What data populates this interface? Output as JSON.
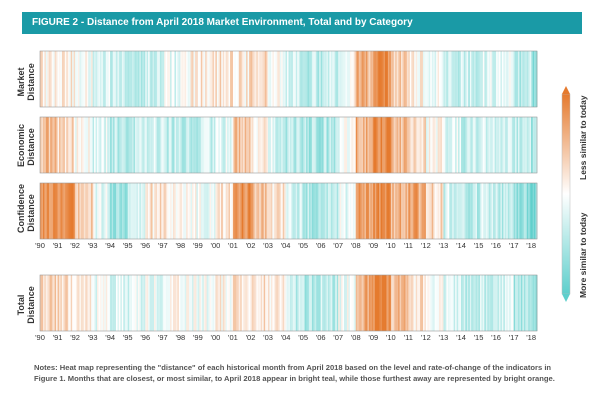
{
  "header": {
    "title": "FIGURE 2 - Distance from April 2018 Market Environment, Total and by Category"
  },
  "legend": {
    "top_label": "Less similar to today",
    "bottom_label": "More similar to today",
    "colors": {
      "high": "#e57a2e",
      "mid": "#ffffff",
      "low": "#5ecfcc"
    }
  },
  "notes": "Notes: Heat map representing the \"distance\" of each historical month from April 2018 based on the level and rate-of-change of the indicators in Figure 1. Months that are closest, or most similar, to April 2018 appear in bright teal, while those furthest away are represented by bright orange.",
  "chart_data": {
    "type": "heatmap",
    "x_start": "1990-01",
    "x_end": "2018-04",
    "x_ticks": [
      "'90",
      "'91",
      "'92",
      "'93",
      "'94",
      "'95",
      "'96",
      "'97",
      "'98",
      "'99",
      "'00",
      "'01",
      "'02",
      "'03",
      "'04",
      "'05",
      "'06",
      "'07",
      "'08",
      "'09",
      "'10",
      "'11",
      "'12",
      "'13",
      "'14",
      "'15",
      "'16",
      "'17",
      "'18"
    ],
    "value_scale": "-1 = most similar (teal), +1 = least similar (orange)",
    "rows": [
      {
        "label": "Market Distance",
        "years": [
          {
            "year": 1990,
            "value": 0.12
          },
          {
            "year": 1991,
            "value": 0.1
          },
          {
            "year": 1992,
            "value": -0.05
          },
          {
            "year": 1993,
            "value": -0.25
          },
          {
            "year": 1994,
            "value": -0.3
          },
          {
            "year": 1995,
            "value": -0.35
          },
          {
            "year": 1996,
            "value": -0.3
          },
          {
            "year": 1997,
            "value": -0.15
          },
          {
            "year": 1998,
            "value": 0.1
          },
          {
            "year": 1999,
            "value": 0.15
          },
          {
            "year": 2000,
            "value": 0.2
          },
          {
            "year": 2001,
            "value": 0.15
          },
          {
            "year": 2002,
            "value": 0.25
          },
          {
            "year": 2003,
            "value": 0.05
          },
          {
            "year": 2004,
            "value": -0.3
          },
          {
            "year": 2005,
            "value": -0.4
          },
          {
            "year": 2006,
            "value": -0.35
          },
          {
            "year": 2007,
            "value": 0.0
          },
          {
            "year": 2008,
            "value": 0.55
          },
          {
            "year": 2009,
            "value": 0.85
          },
          {
            "year": 2010,
            "value": 0.35
          },
          {
            "year": 2011,
            "value": 0.1
          },
          {
            "year": 2012,
            "value": -0.1
          },
          {
            "year": 2013,
            "value": -0.3
          },
          {
            "year": 2014,
            "value": -0.35
          },
          {
            "year": 2015,
            "value": -0.2
          },
          {
            "year": 2016,
            "value": -0.1
          },
          {
            "year": 2017,
            "value": -0.4
          },
          {
            "year": 2018,
            "value": -0.7
          }
        ]
      },
      {
        "label": "Economic Distance",
        "years": [
          {
            "year": 1990,
            "value": 0.5
          },
          {
            "year": 1991,
            "value": 0.3
          },
          {
            "year": 1992,
            "value": 0.05
          },
          {
            "year": 1993,
            "value": -0.2
          },
          {
            "year": 1994,
            "value": -0.45
          },
          {
            "year": 1995,
            "value": -0.35
          },
          {
            "year": 1996,
            "value": -0.3
          },
          {
            "year": 1997,
            "value": -0.4
          },
          {
            "year": 1998,
            "value": -0.35
          },
          {
            "year": 1999,
            "value": -0.3
          },
          {
            "year": 2000,
            "value": -0.2
          },
          {
            "year": 2001,
            "value": 0.45
          },
          {
            "year": 2002,
            "value": 0.1
          },
          {
            "year": 2003,
            "value": -0.2
          },
          {
            "year": 2004,
            "value": -0.45
          },
          {
            "year": 2005,
            "value": -0.5
          },
          {
            "year": 2006,
            "value": -0.45
          },
          {
            "year": 2007,
            "value": -0.1
          },
          {
            "year": 2008,
            "value": 0.6
          },
          {
            "year": 2009,
            "value": 0.9
          },
          {
            "year": 2010,
            "value": 0.5
          },
          {
            "year": 2011,
            "value": 0.25
          },
          {
            "year": 2012,
            "value": 0.0
          },
          {
            "year": 2013,
            "value": -0.2
          },
          {
            "year": 2014,
            "value": -0.35
          },
          {
            "year": 2015,
            "value": -0.3
          },
          {
            "year": 2016,
            "value": -0.2
          },
          {
            "year": 2017,
            "value": -0.35
          },
          {
            "year": 2018,
            "value": -0.6
          }
        ]
      },
      {
        "label": "Confidence Distance",
        "years": [
          {
            "year": 1990,
            "value": 0.75
          },
          {
            "year": 1991,
            "value": 0.85
          },
          {
            "year": 1992,
            "value": 0.4
          },
          {
            "year": 1993,
            "value": -0.1
          },
          {
            "year": 1994,
            "value": -0.6
          },
          {
            "year": 1995,
            "value": -0.35
          },
          {
            "year": 1996,
            "value": 0.2
          },
          {
            "year": 1997,
            "value": 0.15
          },
          {
            "year": 1998,
            "value": -0.05
          },
          {
            "year": 1999,
            "value": -0.1
          },
          {
            "year": 2000,
            "value": 0.25
          },
          {
            "year": 2001,
            "value": 0.85
          },
          {
            "year": 2002,
            "value": 0.5
          },
          {
            "year": 2003,
            "value": 0.2
          },
          {
            "year": 2004,
            "value": -0.3
          },
          {
            "year": 2005,
            "value": -0.5
          },
          {
            "year": 2006,
            "value": -0.45
          },
          {
            "year": 2007,
            "value": -0.1
          },
          {
            "year": 2008,
            "value": 0.7
          },
          {
            "year": 2009,
            "value": 0.9
          },
          {
            "year": 2010,
            "value": 0.55
          },
          {
            "year": 2011,
            "value": 0.65
          },
          {
            "year": 2012,
            "value": 0.3
          },
          {
            "year": 2013,
            "value": -0.25
          },
          {
            "year": 2014,
            "value": -0.4
          },
          {
            "year": 2015,
            "value": -0.3
          },
          {
            "year": 2016,
            "value": -0.4
          },
          {
            "year": 2017,
            "value": -0.65
          },
          {
            "year": 2018,
            "value": -0.8
          }
        ]
      },
      {
        "label": "Total Distance",
        "years": [
          {
            "year": 1990,
            "value": 0.3
          },
          {
            "year": 1991,
            "value": 0.25
          },
          {
            "year": 1992,
            "value": 0.05
          },
          {
            "year": 1993,
            "value": -0.1
          },
          {
            "year": 1994,
            "value": -0.2
          },
          {
            "year": 1995,
            "value": -0.2
          },
          {
            "year": 1996,
            "value": -0.1
          },
          {
            "year": 1997,
            "value": 0.0
          },
          {
            "year": 1998,
            "value": -0.05
          },
          {
            "year": 1999,
            "value": -0.05
          },
          {
            "year": 2000,
            "value": 0.05
          },
          {
            "year": 2001,
            "value": 0.25
          },
          {
            "year": 2002,
            "value": 0.2
          },
          {
            "year": 2003,
            "value": 0.05
          },
          {
            "year": 2004,
            "value": -0.35
          },
          {
            "year": 2005,
            "value": -0.45
          },
          {
            "year": 2006,
            "value": -0.4
          },
          {
            "year": 2007,
            "value": -0.05
          },
          {
            "year": 2008,
            "value": 0.6
          },
          {
            "year": 2009,
            "value": 0.9
          },
          {
            "year": 2010,
            "value": 0.45
          },
          {
            "year": 2011,
            "value": 0.2
          },
          {
            "year": 2012,
            "value": -0.05
          },
          {
            "year": 2013,
            "value": -0.25
          },
          {
            "year": 2014,
            "value": -0.4
          },
          {
            "year": 2015,
            "value": -0.35
          },
          {
            "year": 2016,
            "value": -0.25
          },
          {
            "year": 2017,
            "value": -0.5
          },
          {
            "year": 2018,
            "value": -0.75
          }
        ]
      }
    ]
  }
}
